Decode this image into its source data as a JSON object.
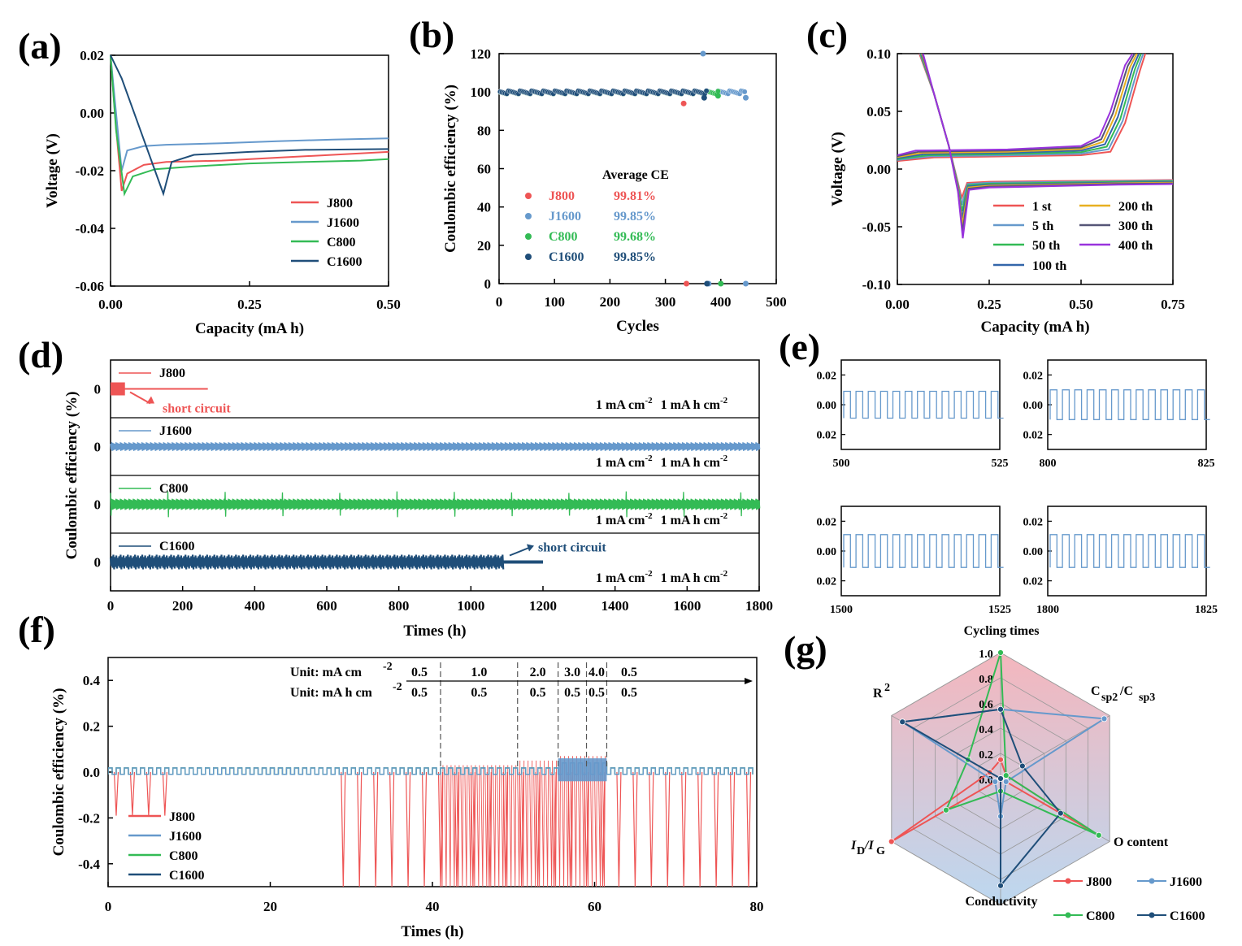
{
  "colors": {
    "J800": "#ee5555",
    "J1600": "#6699cc",
    "C800": "#33bb55",
    "C1600": "#1f4e79",
    "axis": "#000000"
  },
  "chart_data": [
    {
      "id": "a",
      "panel_label": "(a)",
      "type": "line",
      "xlabel": "Capacity (mA h)",
      "ylabel": "Voltage (V)",
      "xlim": [
        0,
        0.5
      ],
      "ylim": [
        -0.06,
        0.02
      ],
      "xticks": [
        "0.00",
        "0.25",
        "0.50"
      ],
      "yticks": [
        "0.02",
        "0.00",
        "-0.02",
        "-0.04",
        "-0.06"
      ],
      "legend": [
        "J800",
        "J1600",
        "C800",
        "C1600"
      ],
      "series": [
        {
          "name": "J800",
          "x": [
            0,
            0.01,
            0.02,
            0.03,
            0.06,
            0.1,
            0.2,
            0.3,
            0.4,
            0.5
          ],
          "y": [
            0.02,
            -0.005,
            -0.027,
            -0.021,
            -0.018,
            -0.017,
            -0.0165,
            -0.0155,
            -0.0145,
            -0.0135
          ]
        },
        {
          "name": "J1600",
          "x": [
            0,
            0.01,
            0.02,
            0.03,
            0.06,
            0.1,
            0.2,
            0.3,
            0.4,
            0.5
          ],
          "y": [
            0.02,
            0.0,
            -0.02,
            -0.013,
            -0.0115,
            -0.011,
            -0.0105,
            -0.0098,
            -0.0092,
            -0.0088
          ]
        },
        {
          "name": "C800",
          "x": [
            0,
            0.01,
            0.025,
            0.04,
            0.08,
            0.15,
            0.25,
            0.35,
            0.45,
            0.5
          ],
          "y": [
            0.02,
            -0.006,
            -0.028,
            -0.022,
            -0.0195,
            -0.0185,
            -0.0175,
            -0.017,
            -0.0165,
            -0.016
          ]
        },
        {
          "name": "C1600",
          "x": [
            0,
            0.02,
            0.05,
            0.08,
            0.095,
            0.11,
            0.15,
            0.25,
            0.35,
            0.5
          ],
          "y": [
            0.02,
            0.012,
            -0.004,
            -0.02,
            -0.028,
            -0.017,
            -0.0145,
            -0.0135,
            -0.0128,
            -0.0125
          ]
        }
      ]
    },
    {
      "id": "b",
      "panel_label": "(b)",
      "type": "scatter",
      "xlabel": "Cycles",
      "ylabel": "Coulombic efficiency (%)",
      "xlim": [
        0,
        500
      ],
      "ylim": [
        0,
        120
      ],
      "xticks": [
        "0",
        "100",
        "200",
        "300",
        "400",
        "500"
      ],
      "yticks": [
        "0",
        "20",
        "40",
        "60",
        "80",
        "100",
        "120"
      ],
      "legend_title": "Average CE",
      "legend": [
        {
          "name": "J800",
          "value": "99.81%"
        },
        {
          "name": "J1600",
          "value": "99.85%"
        },
        {
          "name": "C800",
          "value": "99.68%"
        },
        {
          "name": "C1600",
          "value": "99.85%"
        }
      ],
      "series": [
        {
          "name": "J800",
          "cycles": 333,
          "ce": 99.81,
          "outliers": [
            [
              333,
              94
            ],
            [
              338,
              0
            ]
          ]
        },
        {
          "name": "J1600",
          "cycles": 445,
          "ce": 99.85,
          "outliers": [
            [
              368,
              120
            ],
            [
              445,
              97
            ],
            [
              445,
              0
            ],
            [
              378,
              0
            ]
          ]
        },
        {
          "name": "C800",
          "cycles": 395,
          "ce": 99.68,
          "outliers": [
            [
              395,
              98
            ],
            [
              400,
              0
            ]
          ]
        },
        {
          "name": "C1600",
          "cycles": 375,
          "ce": 99.85,
          "outliers": [
            [
              370,
              97
            ],
            [
              375,
              0
            ]
          ]
        }
      ]
    },
    {
      "id": "c",
      "panel_label": "(c)",
      "type": "line",
      "xlabel": "Capacity (mA h)",
      "ylabel": "Voltage (V)",
      "xlim": [
        0,
        0.75
      ],
      "ylim": [
        -0.1,
        0.1
      ],
      "xticks": [
        "0.00",
        "0.25",
        "0.50",
        "0.75"
      ],
      "yticks": [
        "0.10",
        "0.05",
        "0.00",
        "-0.05",
        "-0.10"
      ],
      "legend": [
        "1 st",
        "5 th",
        "50 th",
        "100 th",
        "200 th",
        "300 th",
        "400 th"
      ],
      "legend_colors": [
        "#ee5555",
        "#6699cc",
        "#33bb55",
        "#3366aa",
        "#e8b020",
        "#555577",
        "#9933dd"
      ],
      "plating": [
        {
          "name": "1 st",
          "x": [
            0.06,
            0.1,
            0.14,
            0.165,
            0.175,
            0.19,
            0.25,
            0.4,
            0.6,
            0.75
          ],
          "y": [
            0.1,
            0.065,
            0.02,
            -0.012,
            -0.025,
            -0.012,
            -0.011,
            -0.0105,
            -0.01,
            -0.0095
          ]
        },
        {
          "name": "400 th",
          "x": [
            0.07,
            0.1,
            0.14,
            0.165,
            0.178,
            0.195,
            0.25,
            0.4,
            0.6,
            0.75
          ],
          "y": [
            0.1,
            0.065,
            0.02,
            -0.02,
            -0.06,
            -0.018,
            -0.016,
            -0.015,
            -0.0135,
            -0.013
          ]
        }
      ],
      "stripping": [
        {
          "name": "1 st",
          "x": [
            0,
            0.1,
            0.3,
            0.5,
            0.58,
            0.62,
            0.66,
            0.675
          ],
          "y": [
            0.007,
            0.01,
            0.011,
            0.012,
            0.015,
            0.04,
            0.085,
            0.1
          ]
        },
        {
          "name": "400 th",
          "x": [
            0,
            0.05,
            0.3,
            0.5,
            0.55,
            0.58,
            0.62,
            0.64
          ],
          "y": [
            0.012,
            0.016,
            0.017,
            0.02,
            0.028,
            0.05,
            0.09,
            0.1
          ]
        }
      ]
    },
    {
      "id": "d",
      "panel_label": "(d)",
      "type": "line",
      "xlabel": "Times (h)",
      "ylabel": "Coulombic efficiency (%)",
      "xlim": [
        0,
        1800
      ],
      "xticks": [
        "0",
        "200",
        "400",
        "600",
        "800",
        "1000",
        "1200",
        "1400",
        "1600",
        "1800"
      ],
      "row_ytick": "0",
      "condition_text": [
        "1 mA cm",
        "-2",
        "1 mA h cm",
        "-2"
      ],
      "rows": [
        {
          "name": "J800",
          "end_h": 270,
          "annotation": "short circuit",
          "dense_until_h": 40
        },
        {
          "name": "J1600",
          "end_h": 1800
        },
        {
          "name": "C800",
          "end_h": 1800
        },
        {
          "name": "C1600",
          "end_h": 1200,
          "annotation": "short circuit",
          "dense_until_h": 1090
        }
      ]
    },
    {
      "id": "e",
      "panel_label": "(e)",
      "type": "line",
      "yticks": [
        "0.02",
        "0.00",
        "0.02"
      ],
      "subplots": [
        {
          "xrange": [
            "500",
            "525"
          ],
          "amp": 0.009
        },
        {
          "xrange": [
            "800",
            "825"
          ],
          "amp": 0.01
        },
        {
          "xrange": [
            "1500",
            "1525"
          ],
          "amp": 0.011
        },
        {
          "xrange": [
            "1800",
            "1825"
          ],
          "amp": 0.011
        }
      ],
      "cycles_per_window": 12.5
    },
    {
      "id": "f",
      "panel_label": "(f)",
      "type": "line",
      "xlabel": "Times (h)",
      "ylabel": "Coulombic efficiency (%)",
      "xlim": [
        0,
        80
      ],
      "ylim": [
        -0.5,
        0.5
      ],
      "xticks": [
        "0",
        "20",
        "40",
        "60",
        "80"
      ],
      "yticks": [
        "0.4",
        "0.2",
        "0.0",
        "-0.2",
        "-0.4"
      ],
      "unit_labels": [
        "Unit: mA cm",
        "-2",
        "Unit: mA h cm",
        "-2"
      ],
      "current_density": [
        "0.5",
        "1.0",
        "2.0",
        "3.0",
        "4.0",
        "0.5"
      ],
      "capacity": [
        "0.5",
        "0.5",
        "0.5",
        "0.5",
        "0.5",
        "0.5"
      ],
      "segment_bounds_h": [
        0,
        41,
        50.5,
        55.5,
        59,
        61.5,
        80
      ],
      "legend": [
        "J800",
        "J1600",
        "C800",
        "C1600"
      ],
      "j800_spike_times_h": [
        1,
        3,
        5,
        7,
        29,
        31,
        33,
        35,
        37,
        39,
        41,
        43,
        45,
        47,
        49,
        51,
        53,
        55,
        57,
        59,
        61,
        63,
        65,
        67,
        69,
        71,
        73,
        75,
        77,
        79
      ]
    },
    {
      "id": "g",
      "panel_label": "(g)",
      "type": "radar",
      "axes": [
        "Cycling times",
        "Csp2/Csp3",
        "O content",
        "Conductivity",
        "ID/IG",
        "R2"
      ],
      "ticks": [
        "1.0",
        "0.8",
        "0.6",
        "0.4",
        "0.2",
        "0.0"
      ],
      "series": [
        {
          "name": "J800",
          "values": [
            0.15,
            0.05,
            0.9,
            0.0,
            1.0,
            0.1
          ]
        },
        {
          "name": "J1600",
          "values": [
            0.55,
            0.95,
            0.05,
            0.3,
            0.05,
            0.9
          ]
        },
        {
          "name": "C800",
          "values": [
            1.0,
            0.05,
            0.9,
            0.1,
            0.5,
            0.3
          ]
        },
        {
          "name": "C1600",
          "values": [
            0.55,
            0.2,
            0.55,
            0.85,
            0.0,
            0.9
          ]
        }
      ]
    }
  ]
}
